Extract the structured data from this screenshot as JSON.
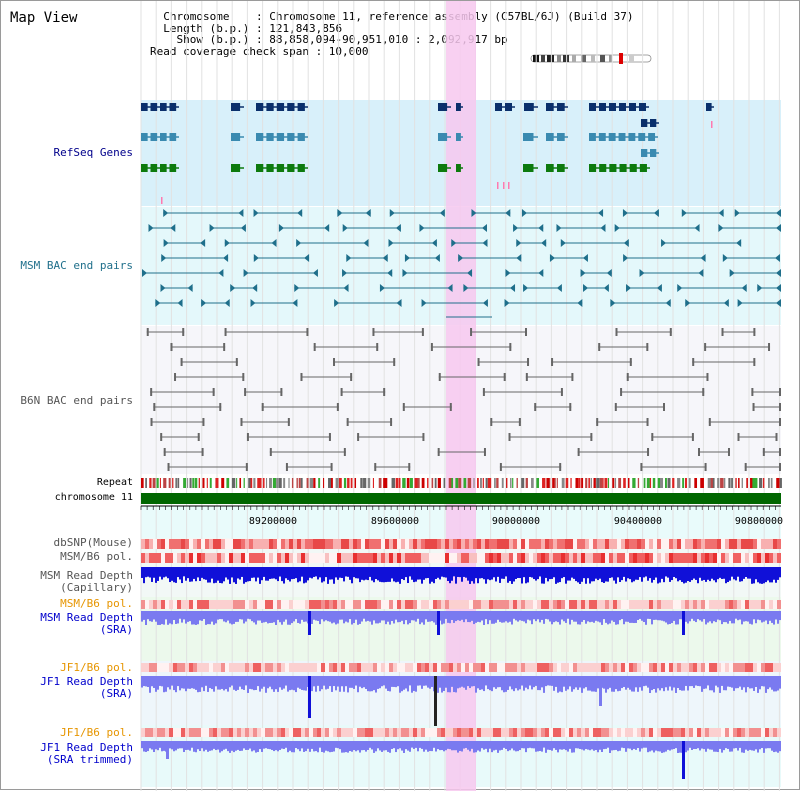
{
  "map_title": "Map View",
  "header": {
    "chromosome_key": "Chromosome",
    "chromosome_val": ": Chromosome 11, reference assembly (C57BL/6J) (Build 37)",
    "length_key": "Length (b.p.)",
    "length_val": ": 121,843,856",
    "show_key": "Show (b.p.)",
    "show_val": ": 88,858,094-90,951,010 : 2,092,917 bp",
    "coverage": "Read coverage check span : 10,000"
  },
  "track_labels": {
    "refseq": "RefSeq Genes",
    "msm_bac": "MSM BAC end pairs",
    "b6n_bac": "B6N BAC end pairs",
    "repeat": "Repeat",
    "chromosome": "chromosome 11",
    "dbsnp": "dbSNP(Mouse)",
    "msm_b6_pol": "MSM/B6 pol.",
    "msm_depth_cap_1": "MSM Read Depth",
    "msm_depth_cap_2": "(Capillary)",
    "msm_b6_pol_2": "MSM/B6 pol.",
    "msm_depth_sra_1": "MSM Read Depth",
    "msm_depth_sra_2": "(SRA)",
    "jf1_b6_pol": "JF1/B6 pol.",
    "jf1_depth_sra_1": "JF1 Read Depth",
    "jf1_depth_sra_2": "(SRA)",
    "jf1_b6_pol_2": "JF1/B6 pol.",
    "jf1_depth_trim_1": "JF1 Read Depth",
    "jf1_depth_trim_2": "(SRA trimmed)"
  },
  "axis": {
    "ticks": [
      "89200000",
      "89600000",
      "90000000",
      "90400000",
      "90800000"
    ]
  },
  "colors": {
    "gene_dark": "#0a2f6b",
    "gene_mid": "#3a8ab0",
    "gene_green": "#0d7a0d",
    "msm_pair": "#1f6f8b",
    "b6n_pair": "#666666",
    "chromosome_bar": "#006600",
    "depth_deep": "#1010d8",
    "depth_light": "#7a7af0",
    "highlight": "#f7c8ef"
  }
}
